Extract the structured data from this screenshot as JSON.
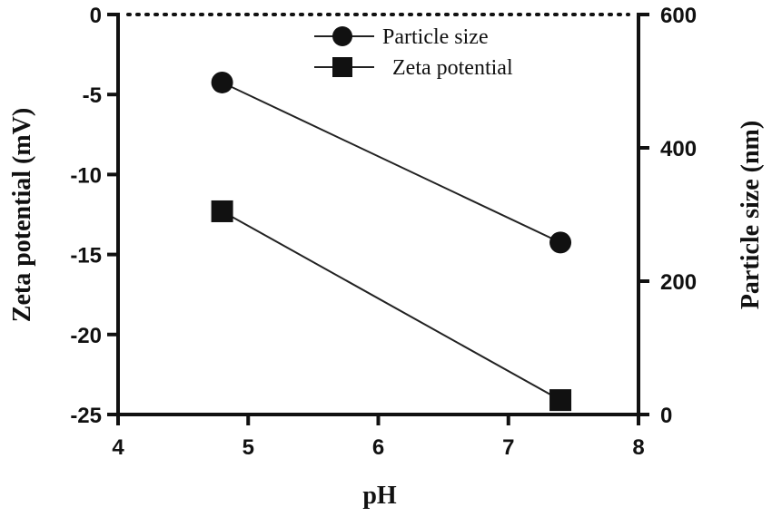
{
  "chart_data": {
    "type": "line",
    "title": "",
    "xlabel": "pH",
    "ylabel_left": "Zeta potential (mV)",
    "ylabel_right": "Particle size (nm)",
    "xlim": [
      4,
      8
    ],
    "ylim_left": [
      -25,
      0
    ],
    "ylim_right": [
      0,
      600
    ],
    "x_ticks": [
      "4",
      "5",
      "6",
      "7",
      "8"
    ],
    "y_left_ticks": [
      "0",
      "-5",
      "-10",
      "-15",
      "-20",
      "-25"
    ],
    "y_right_ticks": [
      "600",
      "400",
      "200",
      "0"
    ],
    "grid": false,
    "legend_position": "top",
    "series": [
      {
        "name": "Particle size",
        "marker": "circle",
        "axis": "right",
        "color": "#111111",
        "x": [
          4.8,
          7.4
        ],
        "y": [
          498,
          258
        ]
      },
      {
        "name": "Zeta potential",
        "marker": "square",
        "axis": "left",
        "color": "#111111",
        "x": [
          4.8,
          7.4
        ],
        "y": [
          -12.3,
          -24.1
        ]
      }
    ]
  }
}
